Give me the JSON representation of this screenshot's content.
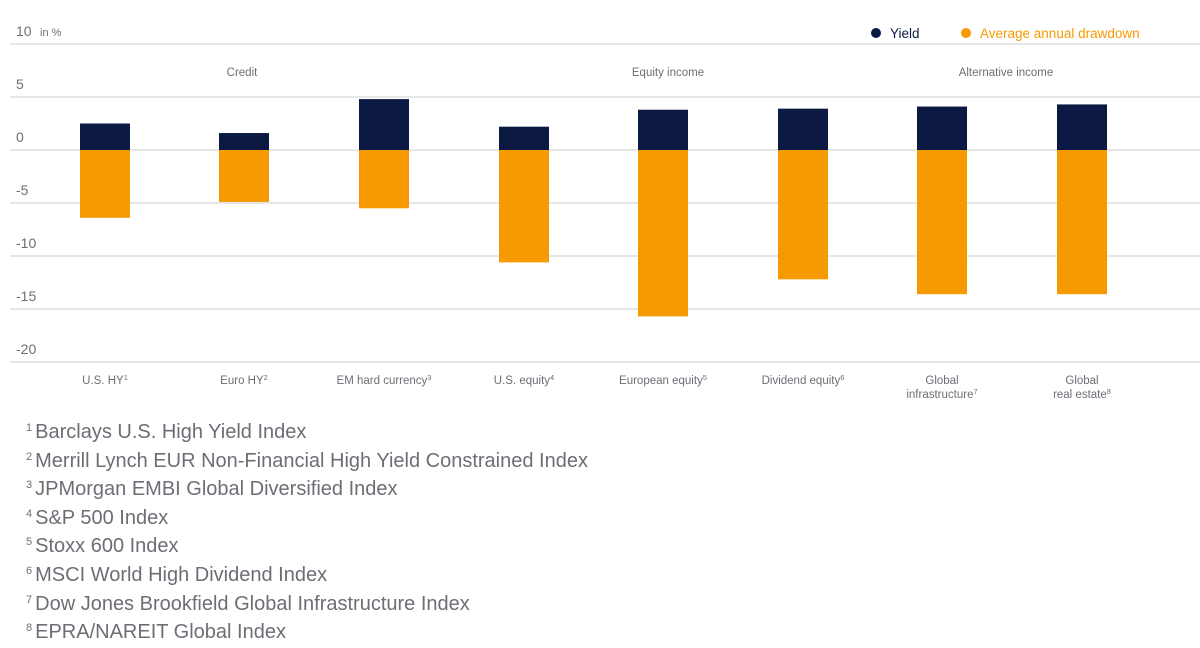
{
  "chart_data": {
    "type": "bar",
    "unit_label": "in %",
    "ylim": [
      -20,
      10
    ],
    "yticks": [
      10,
      5,
      0,
      -5,
      -10,
      -15,
      -20
    ],
    "grid": true,
    "legend_position": "top-right",
    "groups": [
      "Credit",
      "Equity income",
      "Alternative income"
    ],
    "categories": [
      {
        "label": "U.S. HY",
        "sup": "1",
        "group": "Credit"
      },
      {
        "label": "Euro HY",
        "sup": "2",
        "group": "Credit"
      },
      {
        "label": "EM hard currency",
        "sup": "3",
        "group": "Credit"
      },
      {
        "label": "U.S. equity",
        "sup": "4",
        "group": "Equity income"
      },
      {
        "label": "European equity",
        "sup": "5",
        "group": "Equity income"
      },
      {
        "label": "Dividend equity",
        "sup": "6",
        "group": "Equity income"
      },
      {
        "label": "Global\ninfrastructure",
        "sup": "7",
        "group": "Alternative income"
      },
      {
        "label": "Global\nreal estate",
        "sup": "8",
        "group": "Alternative income"
      }
    ],
    "series": [
      {
        "name": "Yield",
        "color": "#0c1a43",
        "values": [
          2.5,
          1.6,
          4.8,
          2.2,
          3.8,
          3.9,
          4.1,
          4.3
        ]
      },
      {
        "name": "Average annual drawdown",
        "color": "#f59a00",
        "values": [
          -6.4,
          -4.9,
          -5.5,
          -10.6,
          -15.7,
          -12.2,
          -13.6,
          -13.6
        ]
      }
    ]
  },
  "footnotes": [
    {
      "num": "1",
      "text": "Barclays U.S. High Yield Index"
    },
    {
      "num": "2",
      "text": "Merrill Lynch EUR Non-Financial High Yield Constrained Index"
    },
    {
      "num": "3",
      "text": "JPMorgan EMBI Global Diversified Index"
    },
    {
      "num": "4",
      "text": "S&P 500 Index"
    },
    {
      "num": "5",
      "text": "Stoxx 600 Index"
    },
    {
      "num": "6",
      "text": "MSCI World High Dividend Index"
    },
    {
      "num": "7",
      "text": "Dow Jones Brookfield Global Infrastructure Index"
    },
    {
      "num": "8",
      "text": "EPRA/NAREIT Global Index"
    }
  ]
}
